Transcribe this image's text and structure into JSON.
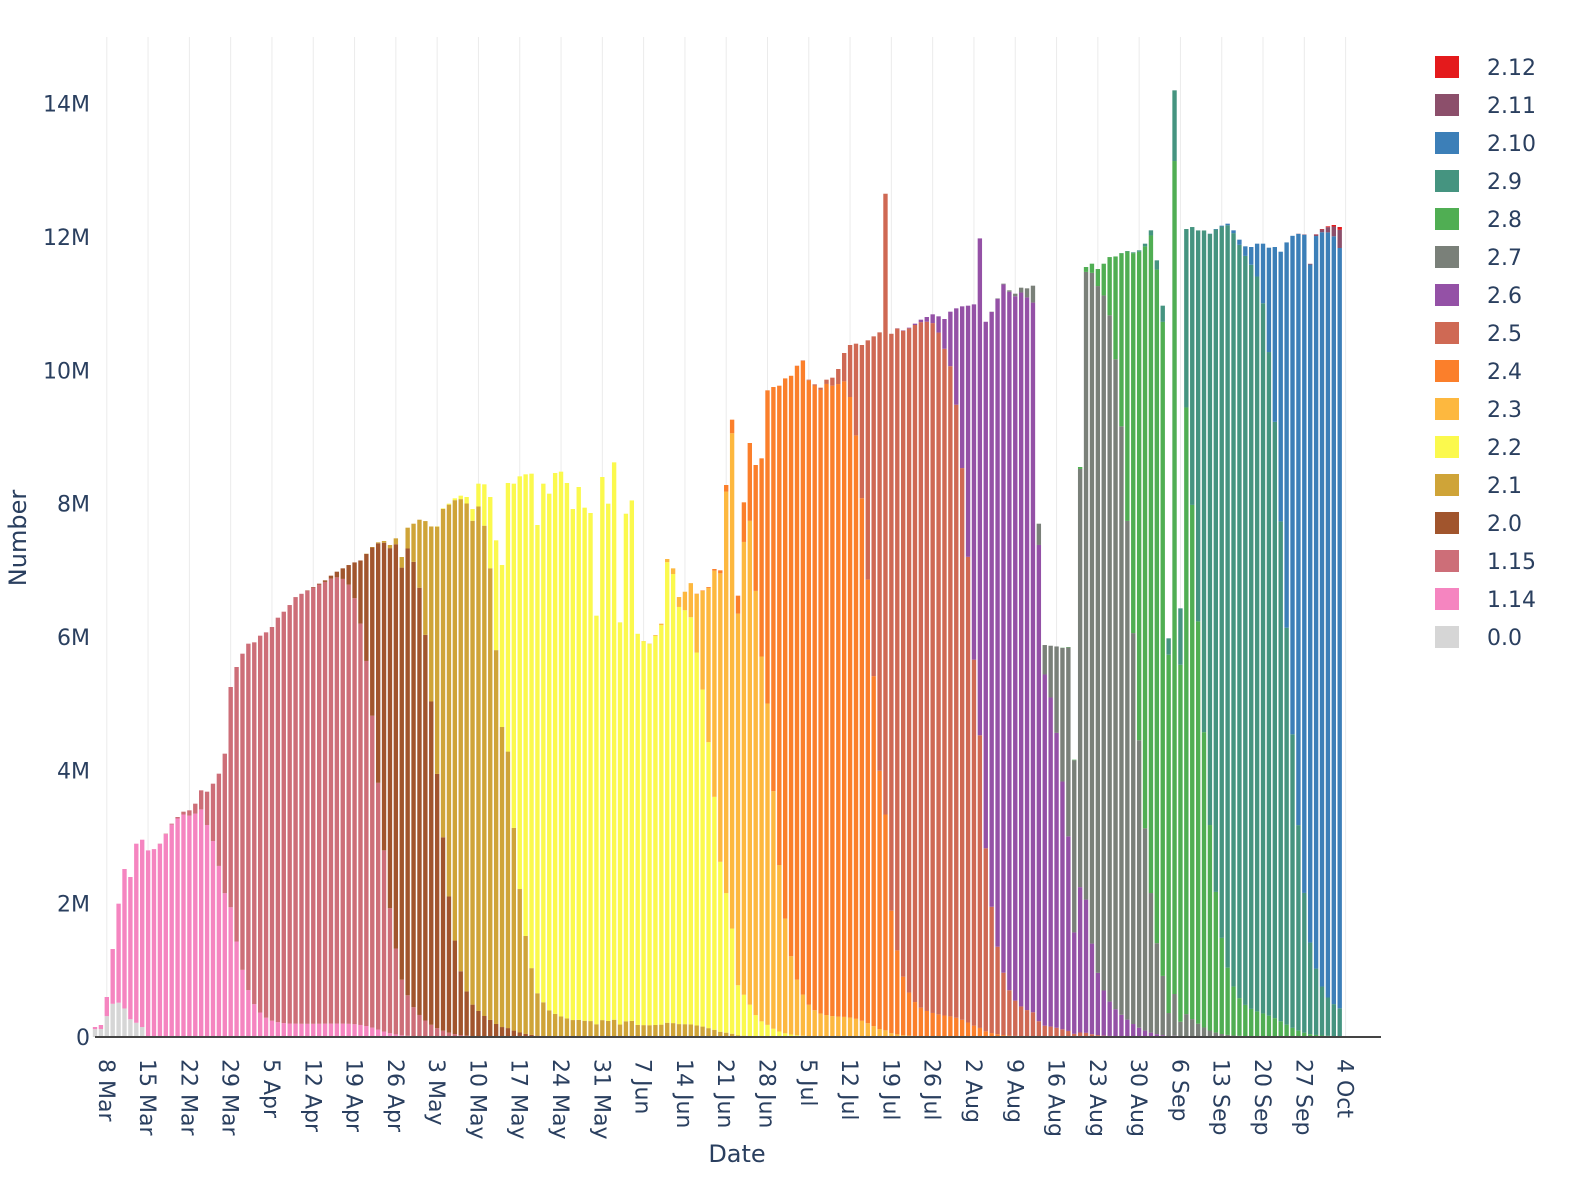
{
  "chart_data": {
    "type": "bar",
    "stacked": true,
    "xlabel": "Date",
    "ylabel": "Number",
    "x_ticks": [
      "8 Mar",
      "15 Mar",
      "22 Mar",
      "29 Mar",
      "5 Apr",
      "12 Apr",
      "19 Apr",
      "26 Apr",
      "3 May",
      "10 May",
      "17 May",
      "24 May",
      "31 May",
      "7 Jun",
      "14 Jun",
      "21 Jun",
      "28 Jun",
      "5 Jul",
      "12 Jul",
      "19 Jul",
      "26 Jul",
      "2 Aug",
      "9 Aug",
      "16 Aug",
      "23 Aug",
      "30 Aug",
      "6 Sep",
      "13 Sep",
      "20 Sep",
      "27 Sep",
      "4 Oct"
    ],
    "x_range": [
      "2020-03-06",
      "2020-10-10"
    ],
    "y_ticks": [
      "0",
      "2M",
      "4M",
      "6M",
      "8M",
      "10M",
      "12M",
      "14M"
    ],
    "y_tick_values": [
      0,
      2000000,
      4000000,
      6000000,
      8000000,
      10000000,
      12000000,
      14000000
    ],
    "ylim": [
      0,
      15000000
    ],
    "grid": "vertical",
    "legend_position": "right",
    "legend": [
      {
        "name": "2.12",
        "color": "#e41a1c"
      },
      {
        "name": "2.11",
        "color": "#8c4f6b"
      },
      {
        "name": "2.10",
        "color": "#3c7fb8"
      },
      {
        "name": "2.9",
        "color": "#459480"
      },
      {
        "name": "2.8",
        "color": "#50ae53"
      },
      {
        "name": "2.7",
        "color": "#7a8079"
      },
      {
        "name": "2.6",
        "color": "#9451a6"
      },
      {
        "name": "2.5",
        "color": "#cf6954"
      },
      {
        "name": "2.4",
        "color": "#fb7f2b"
      },
      {
        "name": "2.3",
        "color": "#fdb83f"
      },
      {
        "name": "2.2",
        "color": "#fbf94d"
      },
      {
        "name": "2.1",
        "color": "#cfa438"
      },
      {
        "name": "2.0",
        "color": "#a1552d"
      },
      {
        "name": "1.15",
        "color": "#cd6e78"
      },
      {
        "name": "1.14",
        "color": "#f585c0"
      },
      {
        "name": "0.0",
        "color": "#d6d6d6"
      }
    ],
    "series_order_bottom_to_top": [
      "0.0",
      "1.14",
      "1.15",
      "2.0",
      "2.1",
      "2.2",
      "2.3",
      "2.4",
      "2.5",
      "2.6",
      "2.7",
      "2.8",
      "2.9",
      "2.10",
      "2.11",
      "2.12"
    ],
    "release_dates": {
      "1.14": "2020-03-09",
      "1.15": "2020-03-28",
      "2.0": "2020-04-23",
      "2.1": "2020-05-03",
      "2.2": "2020-05-15",
      "2.3": "2020-06-19",
      "2.4": "2020-06-28",
      "2.5": "2020-07-16",
      "2.6": "2020-08-02",
      "2.7": "2020-08-18",
      "2.8": "2020-08-29",
      "2.9": "2020-09-09",
      "2.10": "2020-09-24",
      "2.11": "2020-10-09",
      "2.12": "2020-10-12"
    },
    "daily_totals": {
      "dates_from": "2020-03-06",
      "dates_to": "2020-10-09",
      "values": [
        150000,
        180000,
        600000,
        1320000,
        2000000,
        2520000,
        2400000,
        2900000,
        2960000,
        2800000,
        2820000,
        2900000,
        3050000,
        3200000,
        3300000,
        3380000,
        3400000,
        3500000,
        3700000,
        3680000,
        3800000,
        3950000,
        4250000,
        5250000,
        5550000,
        5750000,
        5900000,
        5920000,
        6020000,
        6070000,
        6150000,
        6290000,
        6380000,
        6480000,
        6600000,
        6650000,
        6700000,
        6750000,
        6800000,
        6850000,
        6920000,
        6980000,
        7030000,
        7080000,
        7120000,
        7150000,
        7250000,
        7350000,
        7420000,
        7440000,
        7380000,
        7480000,
        7200000,
        7640000,
        7700000,
        7760000,
        7740000,
        7660000,
        7660000,
        7930000,
        8000000,
        8080000,
        8120000,
        8100000,
        7920000,
        8300000,
        8290000,
        8100000,
        7450000,
        7080000,
        8310000,
        8300000,
        8410000,
        8440000,
        8450000,
        7680000,
        8300000,
        8150000,
        8460000,
        8480000,
        8310000,
        7920000,
        8250000,
        7940000,
        7860000,
        6320000,
        8400000,
        8000000,
        8620000,
        6220000,
        7850000,
        8050000,
        6050000,
        5940000,
        5900000,
        6030000,
        6200000,
        7170000,
        7030000,
        6600000,
        6680000,
        6810000,
        6650000,
        6700000,
        6750000,
        7020000,
        7000000,
        8280000,
        9260000,
        6620000,
        8020000,
        8910000,
        8580000,
        8680000,
        9700000,
        9750000,
        9770000,
        9880000,
        9920000,
        10070000,
        10150000,
        9860000,
        9790000,
        9740000,
        9860000,
        9890000,
        10020000,
        10260000,
        10380000,
        10400000,
        10380000,
        10450000,
        10510000,
        10570000,
        12650000,
        10550000,
        10630000,
        10600000,
        10640000,
        10700000,
        10760000,
        10800000,
        10840000,
        10810000,
        10770000,
        10880000,
        10930000,
        10960000,
        10970000,
        10990000,
        11980000,
        10730000,
        10880000,
        11080000,
        11300000,
        11200000,
        11150000,
        11240000,
        11230000,
        11270000,
        7700000,
        5880000,
        5870000,
        5860000,
        5840000,
        5850000,
        4160000,
        8550000,
        11550000,
        11600000,
        11520000,
        11600000,
        11700000,
        11710000,
        11760000,
        11790000,
        11770000,
        11800000,
        11900000,
        12100000,
        11650000,
        10970000,
        5980000,
        14200000,
        6430000,
        12120000,
        12150000,
        12100000,
        12100000,
        12050000,
        12120000,
        12170000,
        12200000,
        12100000,
        11960000,
        11860000,
        11850000,
        11900000,
        11900000,
        11840000,
        11850000,
        11780000,
        11920000,
        12020000,
        12050000,
        12040000,
        11600000,
        12040000,
        12120000,
        12160000,
        12180000,
        12150000
      ]
    }
  }
}
